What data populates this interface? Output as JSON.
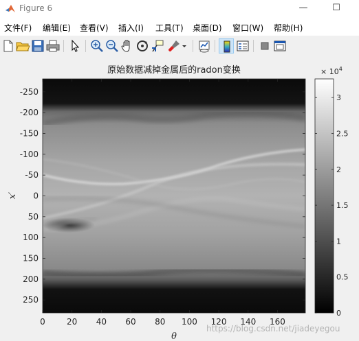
{
  "window": {
    "title": "Figure 6",
    "minimize_glyph": "—",
    "maximize_glyph": "☐"
  },
  "menu": [
    "文件(F)",
    "编辑(E)",
    "查看(V)",
    "插入(I)",
    "工具(T)",
    "桌面(D)",
    "窗口(W)",
    "帮助(H)"
  ],
  "toolbar_icons": [
    "new-figure-icon",
    "open-folder-icon",
    "save-icon",
    "print-icon",
    "pointer-icon",
    "zoom-in-icon",
    "zoom-out-icon",
    "pan-hand-icon",
    "rotate-3d-icon",
    "data-cursor-icon",
    "brush-icon",
    "brush-dropdown-icon",
    "link-plot-icon",
    "colorbar-icon",
    "legend-icon",
    "hide-plot-tools-icon",
    "show-plot-tools-icon"
  ],
  "watermark": "https://blog.csdn.net/jiadeyegou",
  "chart_data": {
    "type": "heatmap",
    "title": "原始数据减掉金属后的radon变换",
    "xlabel": "θ",
    "ylabel": "x′",
    "xlim": [
      0,
      179
    ],
    "ylim": [
      -281,
      281
    ],
    "y_reversed": true,
    "x_ticks": [
      0,
      20,
      40,
      60,
      80,
      100,
      120,
      140,
      160
    ],
    "y_ticks": [
      -250,
      -200,
      -150,
      -100,
      -50,
      0,
      50,
      100,
      150,
      200,
      250
    ],
    "colormap": "gray",
    "colorbar": {
      "min": 0,
      "max": 32600,
      "ticks": [
        "0",
        "0.5",
        "1",
        "1.5",
        "2",
        "2.5",
        "3"
      ],
      "tick_values": [
        0,
        5000,
        10000,
        15000,
        20000,
        25000,
        30000
      ],
      "exponent_label": "× 10",
      "exponent": "4"
    }
  }
}
